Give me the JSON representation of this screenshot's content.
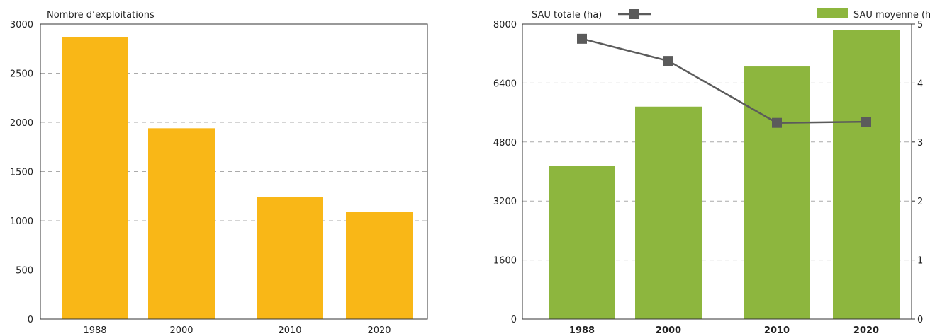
{
  "chart_data": [
    {
      "type": "bar",
      "title": "",
      "ylabel": "Nombre d’exploitations",
      "xlabel": "",
      "categories": [
        "1988",
        "2000",
        "2010",
        "2020"
      ],
      "values": [
        2870,
        1940,
        1240,
        1090
      ],
      "ylim": [
        0,
        3000
      ],
      "yticks": [
        "0",
        "500",
        "1000",
        "1500",
        "2000",
        "2500",
        "3000"
      ],
      "grid": true,
      "color": "#f9b717"
    },
    {
      "type": "bar+line",
      "title": "",
      "categories": [
        "1988",
        "2000",
        "2010",
        "2020"
      ],
      "bar_series": {
        "name": "SAU moyenne (ha)",
        "values": [
          2.6,
          3.6,
          4.28,
          4.9
        ],
        "axis": "right",
        "color": "#8db63e"
      },
      "line_series": {
        "name": "SAU totale (ha)",
        "values": [
          7600,
          7000,
          5320,
          5350
        ],
        "axis": "left",
        "color": "#5b5b5b"
      },
      "ylim_left": [
        0,
        8000
      ],
      "yticks_left": [
        "0",
        "1600",
        "3200",
        "4800",
        "6400",
        "8000"
      ],
      "ylim_right": [
        0,
        5
      ],
      "yticks_right": [
        "0",
        "1",
        "2",
        "3",
        "4",
        "5"
      ],
      "grid": true,
      "legend": [
        "top-left",
        "top-right"
      ]
    }
  ]
}
